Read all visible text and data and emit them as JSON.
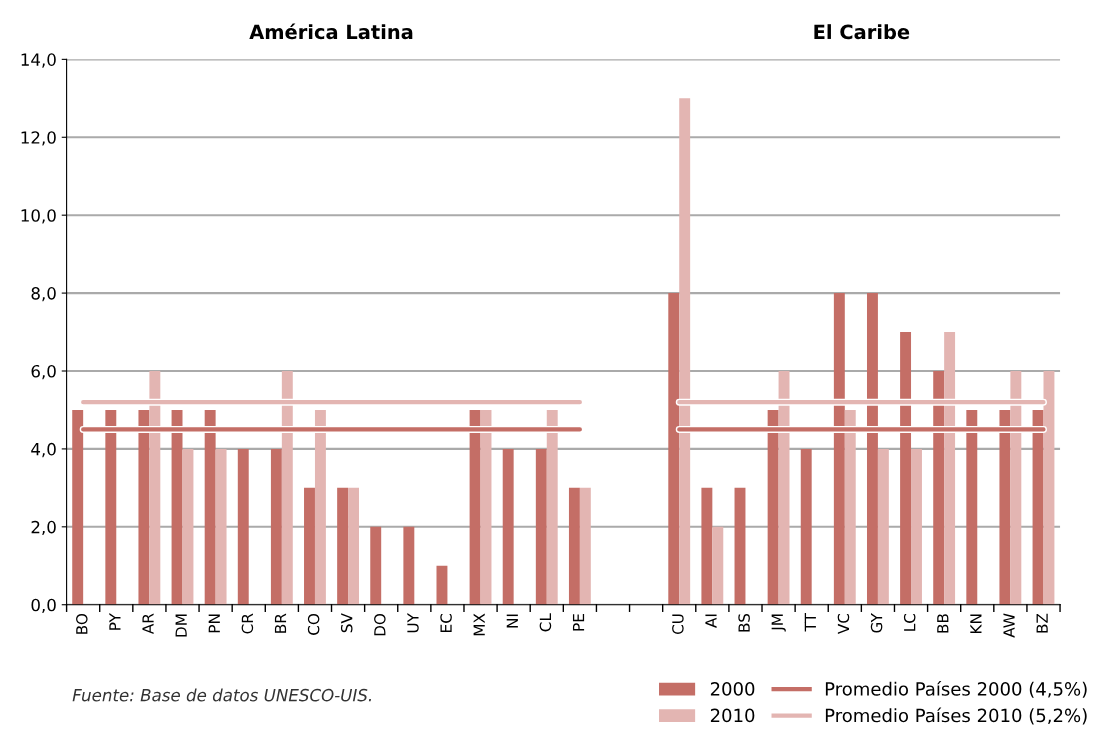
{
  "chart_data": {
    "type": "bar",
    "categories": [
      "BO",
      "PY",
      "AR",
      "DM",
      "PN",
      "CR",
      "BR",
      "CO",
      "SV",
      "DO",
      "UY",
      "EC",
      "MX",
      "NI",
      "CL",
      "PE",
      null,
      null,
      "CU",
      "AI",
      "BS",
      "JM",
      "TT",
      "VC",
      "GY",
      "LC",
      "BB",
      "KN",
      "AW",
      "BZ"
    ],
    "series": [
      {
        "name": "2000",
        "color": "#c46e66",
        "values": [
          5,
          5,
          5,
          5,
          5,
          4,
          4,
          3,
          3,
          2,
          2,
          1,
          5,
          4,
          4,
          3,
          null,
          null,
          8,
          3,
          3,
          5,
          4,
          8,
          8,
          7,
          6,
          5,
          5,
          5
        ]
      },
      {
        "name": "2010",
        "color": "#e3b5b2",
        "values": [
          null,
          null,
          6,
          4,
          4,
          null,
          6,
          5,
          3,
          null,
          null,
          null,
          5,
          null,
          5,
          3,
          null,
          null,
          13,
          2,
          null,
          6,
          null,
          5,
          4,
          4,
          7,
          null,
          6,
          6
        ]
      },
      {
        "name": "Promedio Países 2000 (4,5%)",
        "type": "line",
        "color": "#c46e66",
        "values": [
          4.5,
          4.5,
          4.5,
          4.5,
          4.5,
          4.5,
          4.5,
          4.5,
          4.5,
          4.5,
          4.5,
          4.5,
          4.5,
          4.5,
          4.5,
          4.5,
          null,
          null,
          4.5,
          4.5,
          4.5,
          4.5,
          4.5,
          4.5,
          4.5,
          4.5,
          4.5,
          4.5,
          4.5,
          4.5
        ]
      },
      {
        "name": "Promedio Países 2010 (5,2%)",
        "type": "line",
        "color": "#e3b5b2",
        "values": [
          5.2,
          5.2,
          5.2,
          5.2,
          5.2,
          5.2,
          5.2,
          5.2,
          5.2,
          5.2,
          5.2,
          5.2,
          5.2,
          5.2,
          5.2,
          5.2,
          null,
          null,
          5.2,
          5.2,
          5.2,
          5.2,
          5.2,
          5.2,
          5.2,
          5.2,
          5.2,
          5.2,
          5.2,
          5.2
        ]
      }
    ],
    "ylim": [
      0,
      14
    ],
    "yticks": [
      {
        "value": 0,
        "label": "0,0"
      },
      {
        "value": 2,
        "label": "2,0"
      },
      {
        "value": 4,
        "label": "4,0"
      },
      {
        "value": 6,
        "label": "6,0"
      },
      {
        "value": 8,
        "label": "8,0"
      },
      {
        "value": 10,
        "label": "10,0"
      },
      {
        "value": 12,
        "label": "12,0"
      },
      {
        "value": 14,
        "label": "14,0"
      }
    ],
    "grid": "y",
    "legend": "bottom right",
    "annotations": [
      "América Latina",
      "El Caribe",
      "Fuente: Base de datos UNESCO-UIS."
    ]
  }
}
